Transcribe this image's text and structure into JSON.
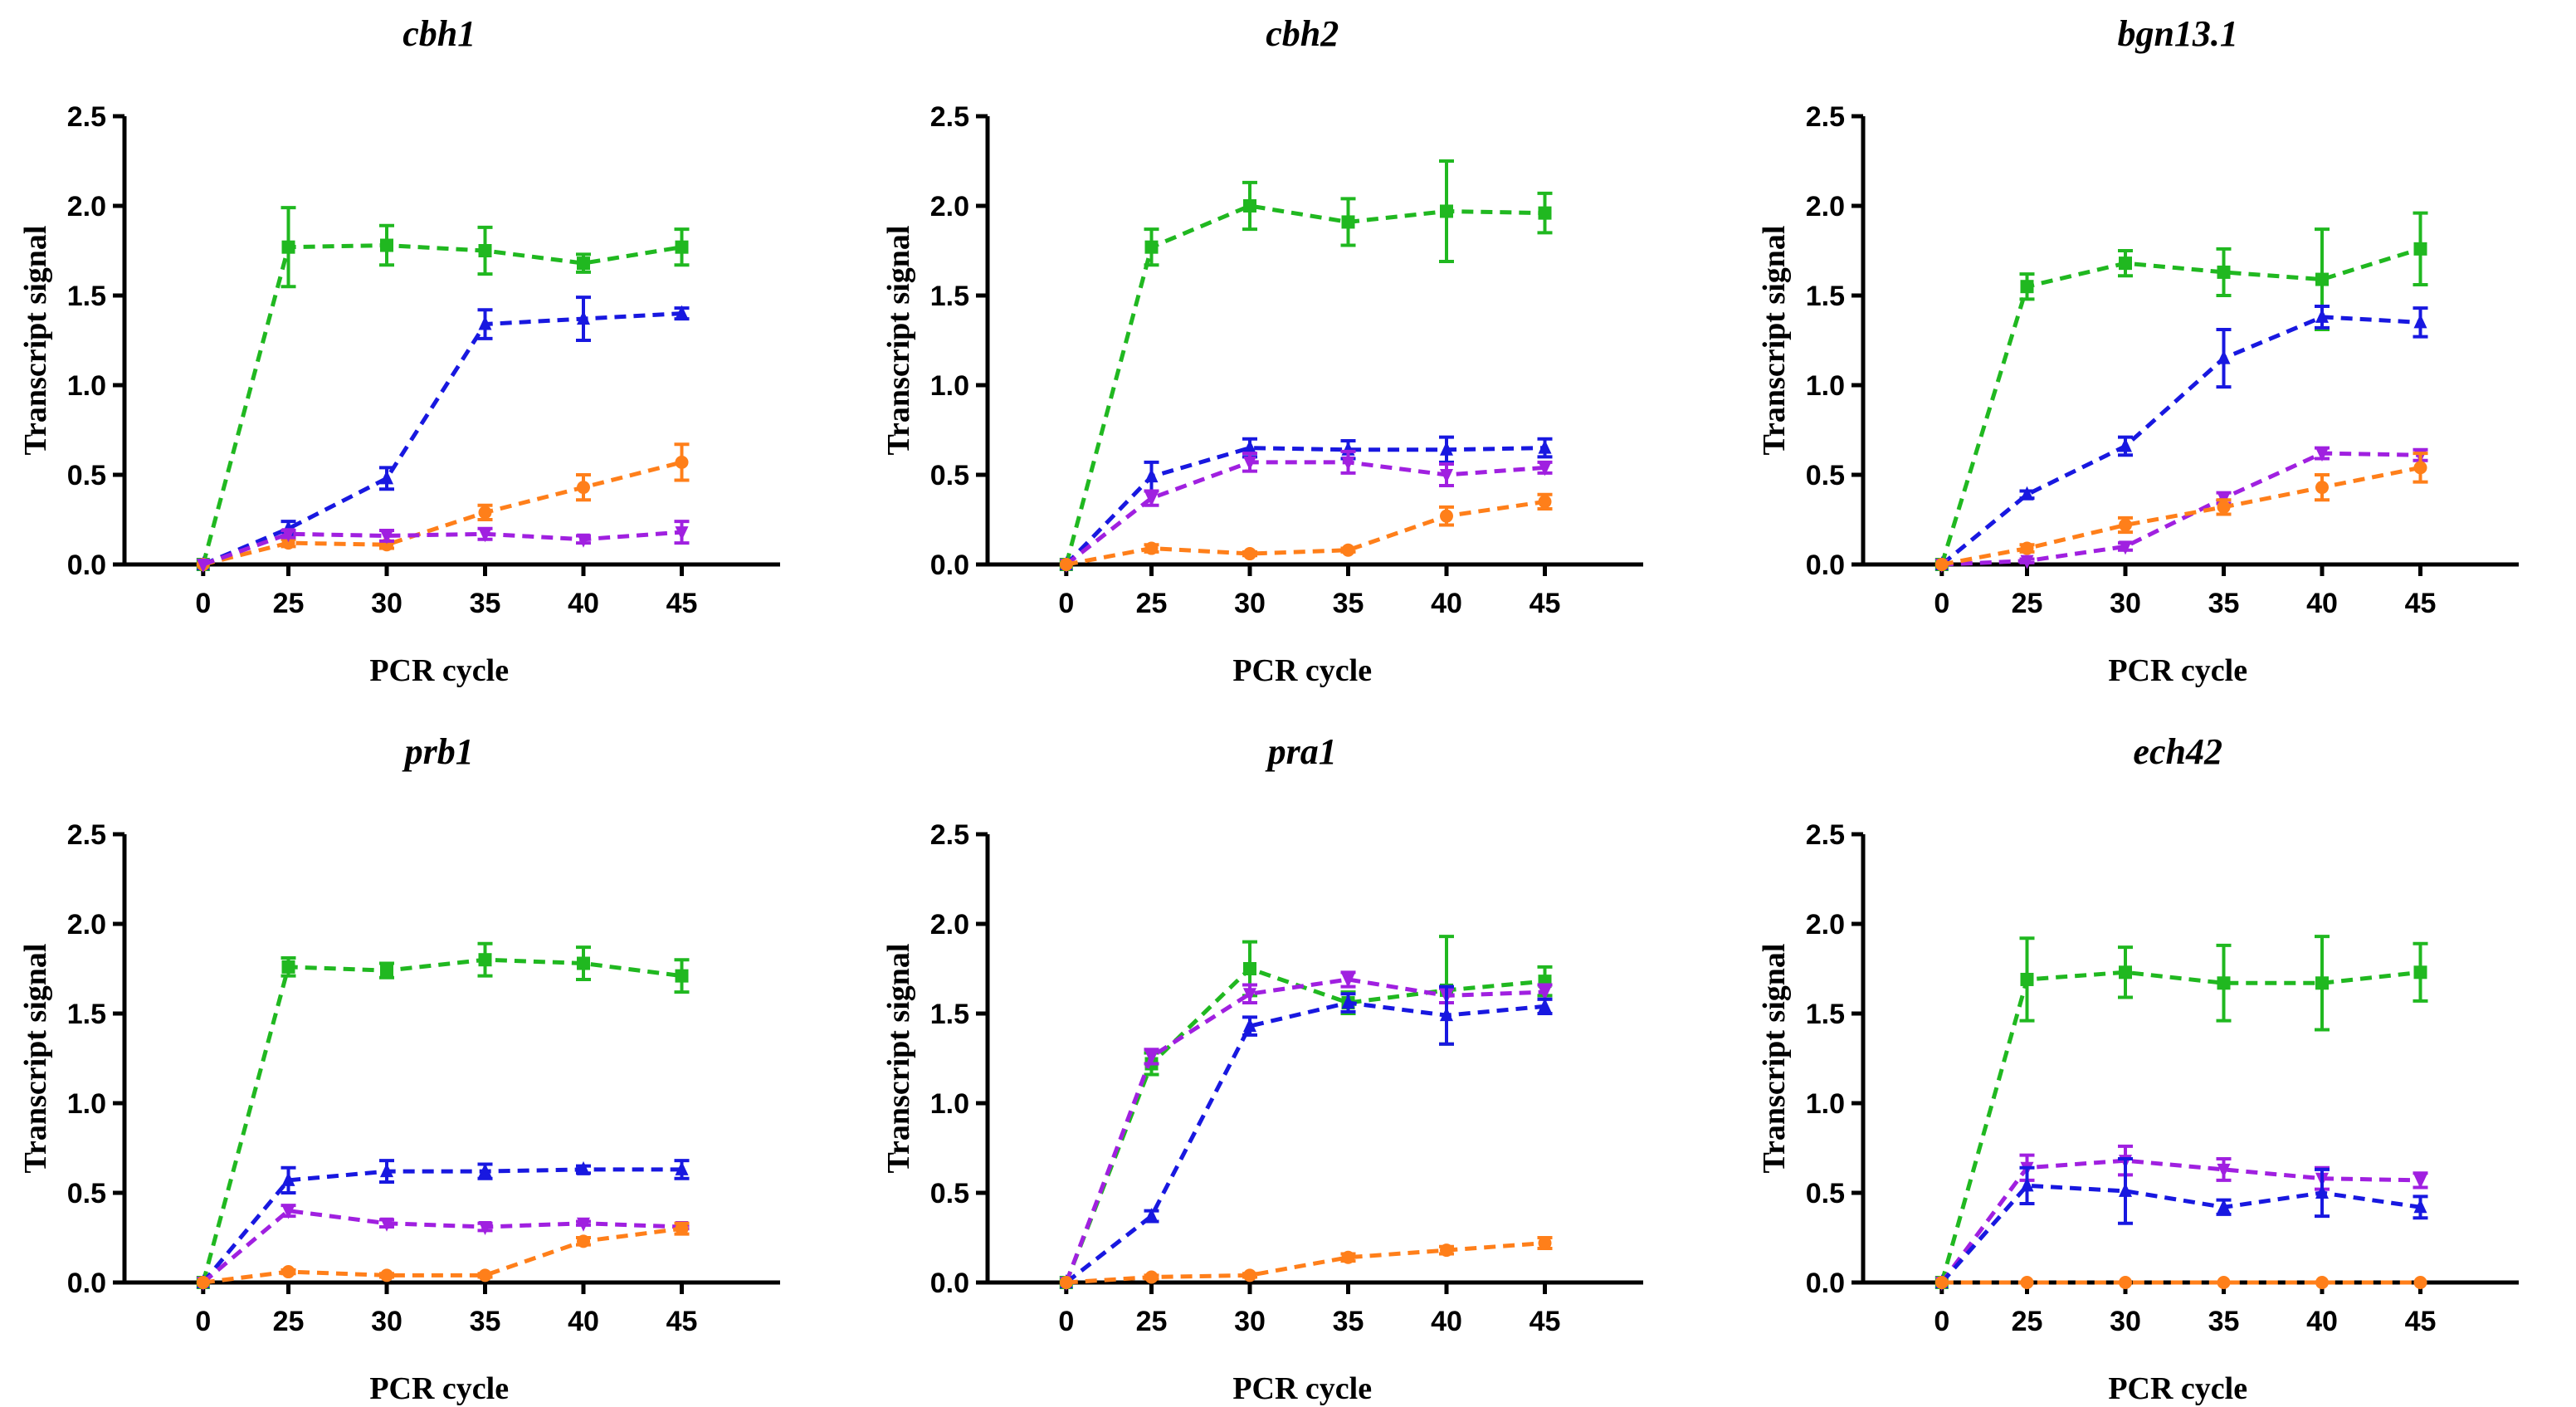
{
  "chart_data": [
    {
      "type": "line",
      "title": "cbh1",
      "xlabel": "PCR cycle",
      "ylabel": "Transcript signal",
      "x": [
        0,
        25,
        30,
        35,
        40,
        45
      ],
      "ylim": [
        0,
        2.5
      ],
      "yticks": [
        "0.0",
        "0.5",
        "1.0",
        "1.5",
        "2.0",
        "2.5"
      ],
      "series": [
        {
          "name": "green",
          "color": "#20b820",
          "marker": "square",
          "values": [
            0,
            1.77,
            1.78,
            1.75,
            1.68,
            1.77
          ],
          "errors": [
            0,
            0.22,
            0.11,
            0.13,
            0.05,
            0.1
          ]
        },
        {
          "name": "blue",
          "color": "#1818e0",
          "marker": "triangle",
          "values": [
            0,
            0.2,
            0.48,
            1.34,
            1.37,
            1.4
          ],
          "errors": [
            0,
            0.04,
            0.06,
            0.08,
            0.12,
            0.03
          ]
        },
        {
          "name": "orange",
          "color": "#ff7f1a",
          "marker": "circle",
          "values": [
            0,
            0.12,
            0.11,
            0.29,
            0.43,
            0.57
          ],
          "errors": [
            0,
            0.02,
            0.02,
            0.04,
            0.07,
            0.1
          ]
        },
        {
          "name": "purple",
          "color": "#a020e0",
          "marker": "triangle-down",
          "values": [
            0,
            0.17,
            0.16,
            0.17,
            0.14,
            0.18
          ],
          "errors": [
            0,
            0.02,
            0.03,
            0.03,
            0.02,
            0.06
          ]
        }
      ]
    },
    {
      "type": "line",
      "title": "cbh2",
      "xlabel": "PCR cycle",
      "ylabel": "Transcript signal",
      "x": [
        0,
        25,
        30,
        35,
        40,
        45
      ],
      "ylim": [
        0,
        2.5
      ],
      "yticks": [
        "0.0",
        "0.5",
        "1.0",
        "1.5",
        "2.0",
        "2.5"
      ],
      "series": [
        {
          "name": "green",
          "color": "#20b820",
          "marker": "square",
          "values": [
            0,
            1.77,
            2.0,
            1.91,
            1.97,
            1.96
          ],
          "errors": [
            0,
            0.1,
            0.13,
            0.13,
            0.28,
            0.11
          ]
        },
        {
          "name": "blue",
          "color": "#1818e0",
          "marker": "triangle",
          "values": [
            0,
            0.49,
            0.65,
            0.64,
            0.64,
            0.65
          ],
          "errors": [
            0,
            0.08,
            0.05,
            0.05,
            0.07,
            0.05
          ]
        },
        {
          "name": "purple",
          "color": "#a020e0",
          "marker": "triangle-down",
          "values": [
            0,
            0.37,
            0.57,
            0.57,
            0.5,
            0.54
          ],
          "errors": [
            0,
            0.04,
            0.05,
            0.06,
            0.06,
            0.03
          ]
        },
        {
          "name": "orange",
          "color": "#ff7f1a",
          "marker": "circle",
          "values": [
            0,
            0.09,
            0.06,
            0.08,
            0.27,
            0.35
          ],
          "errors": [
            0,
            0.02,
            0.01,
            0.01,
            0.05,
            0.04
          ]
        }
      ]
    },
    {
      "type": "line",
      "title": "bgn13.1",
      "xlabel": "PCR cycle",
      "ylabel": "Transcript signal",
      "x": [
        0,
        25,
        30,
        35,
        40,
        45
      ],
      "ylim": [
        0,
        2.5
      ],
      "yticks": [
        "0.0",
        "0.5",
        "1.0",
        "1.5",
        "2.0",
        "2.5"
      ],
      "series": [
        {
          "name": "green",
          "color": "#20b820",
          "marker": "square",
          "values": [
            0,
            1.55,
            1.68,
            1.63,
            1.59,
            1.76
          ],
          "errors": [
            0,
            0.07,
            0.07,
            0.13,
            0.28,
            0.2
          ]
        },
        {
          "name": "blue",
          "color": "#1818e0",
          "marker": "triangle",
          "values": [
            0,
            0.39,
            0.66,
            1.15,
            1.38,
            1.35
          ],
          "errors": [
            0,
            0.02,
            0.05,
            0.16,
            0.06,
            0.08
          ]
        },
        {
          "name": "purple",
          "color": "#a020e0",
          "marker": "triangle-down",
          "values": [
            0,
            0.02,
            0.1,
            0.37,
            0.62,
            0.61
          ],
          "errors": [
            0,
            0.01,
            0.02,
            0.03,
            0.03,
            0.03
          ]
        },
        {
          "name": "orange",
          "color": "#ff7f1a",
          "marker": "circle",
          "values": [
            0,
            0.09,
            0.22,
            0.32,
            0.43,
            0.54
          ],
          "errors": [
            0,
            0.02,
            0.04,
            0.04,
            0.07,
            0.08
          ]
        }
      ]
    },
    {
      "type": "line",
      "title": "prb1",
      "xlabel": "PCR cycle",
      "ylabel": "Transcript signal",
      "x": [
        0,
        25,
        30,
        35,
        40,
        45
      ],
      "ylim": [
        0,
        2.5
      ],
      "yticks": [
        "0.0",
        "0.5",
        "1.0",
        "1.5",
        "2.0",
        "2.5"
      ],
      "series": [
        {
          "name": "green",
          "color": "#20b820",
          "marker": "square",
          "values": [
            0,
            1.76,
            1.74,
            1.8,
            1.78,
            1.71
          ],
          "errors": [
            0,
            0.05,
            0.04,
            0.09,
            0.09,
            0.09
          ]
        },
        {
          "name": "blue",
          "color": "#1818e0",
          "marker": "triangle",
          "values": [
            0,
            0.57,
            0.62,
            0.62,
            0.63,
            0.63
          ],
          "errors": [
            0,
            0.07,
            0.06,
            0.04,
            0.02,
            0.05
          ]
        },
        {
          "name": "purple",
          "color": "#a020e0",
          "marker": "triangle-down",
          "values": [
            0,
            0.4,
            0.33,
            0.31,
            0.33,
            0.31
          ],
          "errors": [
            0,
            0.03,
            0.02,
            0.02,
            0.01,
            0.01
          ]
        },
        {
          "name": "orange",
          "color": "#ff7f1a",
          "marker": "circle",
          "values": [
            0,
            0.06,
            0.04,
            0.04,
            0.23,
            0.3
          ],
          "errors": [
            0,
            0.01,
            0.01,
            0.01,
            0.02,
            0.03
          ]
        }
      ]
    },
    {
      "type": "line",
      "title": "pra1",
      "xlabel": "PCR cycle",
      "ylabel": "Transcript signal",
      "x": [
        0,
        25,
        30,
        35,
        40,
        45
      ],
      "ylim": [
        0,
        2.5
      ],
      "yticks": [
        "0.0",
        "0.5",
        "1.0",
        "1.5",
        "2.0",
        "2.5"
      ],
      "series": [
        {
          "name": "green",
          "color": "#20b820",
          "marker": "square",
          "values": [
            0,
            1.22,
            1.75,
            1.56,
            1.63,
            1.68
          ],
          "errors": [
            0,
            0.06,
            0.15,
            0.06,
            0.3,
            0.08
          ]
        },
        {
          "name": "purple",
          "color": "#a020e0",
          "marker": "triangle-down",
          "values": [
            0,
            1.26,
            1.61,
            1.69,
            1.6,
            1.62
          ],
          "errors": [
            0,
            0.04,
            0.05,
            0.04,
            0.04,
            0.04
          ]
        },
        {
          "name": "blue",
          "color": "#1818e0",
          "marker": "triangle",
          "values": [
            0,
            0.37,
            1.43,
            1.56,
            1.49,
            1.54
          ],
          "errors": [
            0,
            0.03,
            0.05,
            0.05,
            0.16,
            0.04
          ]
        },
        {
          "name": "orange",
          "color": "#ff7f1a",
          "marker": "circle",
          "values": [
            0,
            0.03,
            0.04,
            0.14,
            0.18,
            0.22
          ],
          "errors": [
            0,
            0.01,
            0.01,
            0.02,
            0.02,
            0.03
          ]
        }
      ]
    },
    {
      "type": "line",
      "title": "ech42",
      "xlabel": "PCR cycle",
      "ylabel": "Transcript signal",
      "x": [
        0,
        25,
        30,
        35,
        40,
        45
      ],
      "ylim": [
        0,
        2.5
      ],
      "yticks": [
        "0.0",
        "0.5",
        "1.0",
        "1.5",
        "2.0",
        "2.5"
      ],
      "series": [
        {
          "name": "green",
          "color": "#20b820",
          "marker": "square",
          "values": [
            0,
            1.69,
            1.73,
            1.67,
            1.67,
            1.73
          ],
          "errors": [
            0,
            0.23,
            0.14,
            0.21,
            0.26,
            0.16
          ]
        },
        {
          "name": "purple",
          "color": "#a020e0",
          "marker": "triangle-down",
          "values": [
            0,
            0.64,
            0.68,
            0.63,
            0.58,
            0.57
          ],
          "errors": [
            0,
            0.07,
            0.08,
            0.06,
            0.06,
            0.04
          ]
        },
        {
          "name": "blue",
          "color": "#1818e0",
          "marker": "triangle",
          "values": [
            0,
            0.54,
            0.51,
            0.42,
            0.5,
            0.42
          ],
          "errors": [
            0,
            0.1,
            0.18,
            0.04,
            0.13,
            0.06
          ]
        },
        {
          "name": "orange",
          "color": "#ff7f1a",
          "marker": "circle",
          "values": [
            0,
            0.0,
            0.0,
            0.0,
            0.0,
            0.0
          ],
          "errors": [
            0,
            0.0,
            0.0,
            0.0,
            0.0,
            0.0
          ]
        }
      ]
    }
  ]
}
